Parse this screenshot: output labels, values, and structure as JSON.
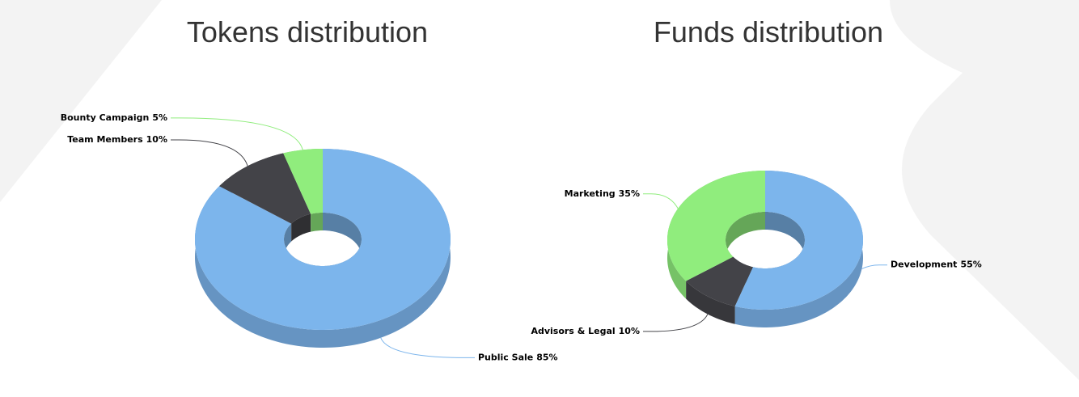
{
  "chart_data": [
    {
      "type": "pie",
      "title": "Tokens distribution",
      "categories": [
        "Public Sale",
        "Team Members",
        "Bounty Campaign"
      ],
      "values": [
        85,
        10,
        5
      ],
      "value_labels": [
        "85%",
        "10%",
        "5%"
      ],
      "colors": [
        "#7cb5ec",
        "#434348",
        "#90ed7d"
      ]
    },
    {
      "type": "pie",
      "title": "Funds distribution",
      "categories": [
        "Development",
        "Advisors & Legal",
        "Marketing"
      ],
      "values": [
        55,
        10,
        35
      ],
      "value_labels": [
        "55%",
        "10%",
        "35%"
      ],
      "colors": [
        "#7cb5ec",
        "#434348",
        "#90ed7d"
      ]
    }
  ]
}
